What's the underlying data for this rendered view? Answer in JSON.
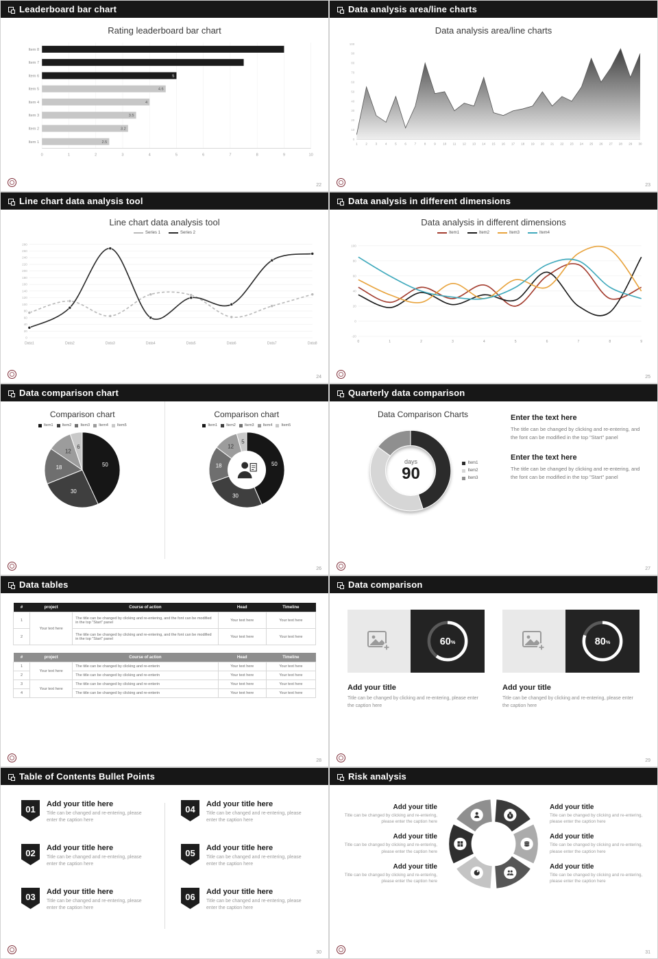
{
  "slides": {
    "leaderboard": {
      "header": "Leaderboard bar chart",
      "title": "Rating leaderboard bar chart",
      "page_no": "22",
      "chart_data": {
        "type": "bar",
        "orientation": "horizontal",
        "title": "Rating leaderboard bar chart",
        "categories": [
          "Item 1",
          "Item 2",
          "Item 3",
          "Item 4",
          "Item 5",
          "Item 6",
          "Item 7",
          "Item 8"
        ],
        "values": [
          2.5,
          3.2,
          3.5,
          4,
          4.6,
          5,
          7.5,
          9
        ],
        "value_labels": [
          "2.5",
          "3.2",
          "3.5",
          "4",
          "4.6",
          "5",
          "",
          ""
        ],
        "colors": [
          "#c7c7c7",
          "#c7c7c7",
          "#c7c7c7",
          "#c7c7c7",
          "#c7c7c7",
          "#1b1b1b",
          "#1b1b1b",
          "#1b1b1b"
        ],
        "xlim": [
          0,
          10
        ],
        "xticks": [
          0,
          1,
          2,
          3,
          4,
          5,
          6,
          7,
          8,
          9,
          10
        ]
      }
    },
    "area": {
      "header": "Data analysis area/line charts",
      "title": "Data analysis area/line charts",
      "page_no": "23",
      "chart_data": {
        "type": "area",
        "title": "Data analysis area/line charts",
        "x": [
          "1",
          "2",
          "3",
          "4",
          "5",
          "6",
          "7",
          "8",
          "9",
          "10",
          "11",
          "12",
          "13",
          "14",
          "15",
          "16",
          "17",
          "18",
          "19",
          "20",
          "21",
          "22",
          "23",
          "24",
          "25",
          "26",
          "27",
          "28",
          "29",
          "30"
        ],
        "values": [
          5,
          55,
          25,
          18,
          45,
          12,
          35,
          80,
          48,
          50,
          30,
          38,
          35,
          65,
          28,
          25,
          30,
          32,
          35,
          50,
          35,
          45,
          40,
          55,
          85,
          60,
          75,
          95,
          65,
          90
        ],
        "ylim": [
          0,
          100
        ],
        "ytick_step": 10
      }
    },
    "linechart": {
      "header": "Line chart data analysis tool",
      "title": "Line chart data analysis tool",
      "page_no": "24",
      "chart_data": {
        "type": "line",
        "title": "Line chart data analysis tool",
        "categories": [
          "Data1",
          "Data2",
          "Data3",
          "Data4",
          "Data5",
          "Data6",
          "Data7",
          "Data8"
        ],
        "ylim": [
          0,
          280
        ],
        "ytick_step": 20,
        "series": [
          {
            "name": "Series 1",
            "color": "#b9b9b9",
            "dash": "4 3",
            "markers": true,
            "values": [
              75,
              110,
              65,
              130,
              128,
              62,
              95,
              130
            ]
          },
          {
            "name": "Series 2",
            "color": "#2a2a2a",
            "dash": "",
            "markers": true,
            "values": [
              30,
              90,
              268,
              60,
              120,
              100,
              232,
              252
            ]
          }
        ]
      }
    },
    "dimensions": {
      "header": "Data analysis in different dimensions",
      "title": "Data analysis in different dimensions",
      "page_no": "25",
      "chart_data": {
        "type": "line",
        "title": "Data analysis in different dimensions",
        "categories": [
          "0",
          "1",
          "2",
          "3",
          "4",
          "5",
          "6",
          "7",
          "8",
          "9"
        ],
        "ylim": [
          -20,
          100
        ],
        "ytick_step": 20,
        "series": [
          {
            "name": "Item1",
            "color": "#a33c2e",
            "dash": "",
            "markers": false,
            "values": [
              45,
              25,
              45,
              30,
              48,
              20,
              60,
              75,
              30,
              45
            ]
          },
          {
            "name": "Item2",
            "color": "#1a1a1a",
            "dash": "",
            "markers": false,
            "values": [
              35,
              18,
              38,
              22,
              35,
              28,
              65,
              20,
              12,
              85
            ]
          },
          {
            "name": "Item3",
            "color": "#e8a33c",
            "dash": "",
            "markers": false,
            "values": [
              55,
              35,
              25,
              50,
              30,
              55,
              45,
              90,
              95,
              40
            ]
          },
          {
            "name": "Item4",
            "color": "#3fa9bc",
            "dash": "",
            "markers": false,
            "values": [
              85,
              60,
              40,
              32,
              30,
              45,
              75,
              80,
              45,
              30
            ]
          }
        ]
      }
    },
    "comparison": {
      "header": "Data comparison chart",
      "page_no": "26",
      "left": {
        "title": "Comparison chart",
        "legend": [
          "Item1",
          "Item2",
          "Item3",
          "Item4",
          "Item5"
        ],
        "chart_data": {
          "type": "pie",
          "values": [
            50,
            30,
            18,
            12,
            6
          ],
          "labels": [
            "50",
            "30",
            "18",
            "12",
            "6"
          ],
          "colors": [
            "#161616",
            "#3f3f3f",
            "#6f6f6f",
            "#9c9c9c",
            "#c9c9c9"
          ],
          "donut": 0
        }
      },
      "right": {
        "title": "Comparison chart",
        "legend": [
          "Item1",
          "Item2",
          "Item3",
          "Item4",
          "Item5"
        ],
        "chart_data": {
          "type": "pie",
          "values": [
            50,
            30,
            18,
            12,
            5
          ],
          "labels": [
            "50",
            "30",
            "18",
            "12",
            "5"
          ],
          "colors": [
            "#161616",
            "#3f3f3f",
            "#6f6f6f",
            "#9c9c9c",
            "#c9c9c9"
          ],
          "donut": 0.5
        }
      }
    },
    "quarterly": {
      "header": "Quarterly data comparison",
      "page_no": "27",
      "title": "Data Comparison Charts",
      "center_label": "days",
      "center_value": "90",
      "legend": [
        "Item1",
        "Item2",
        "Item3"
      ],
      "chart_data": {
        "type": "pie",
        "values": [
          45,
          40,
          15
        ],
        "labels": [
          "",
          "",
          ""
        ],
        "colors": [
          "#2b2b2b",
          "#d6d6d6",
          "#8f8f8f"
        ],
        "donut": 0.62
      },
      "blocks": [
        {
          "heading": "Enter the text here",
          "body": "The title can be changed by clicking and re-entering, and the font can be modified in the top \"Start\" panel"
        },
        {
          "heading": "Enter the text here",
          "body": "The title can be changed by clicking and re-entering, and the font can be modified in the top \"Start\" panel"
        }
      ]
    },
    "tables": {
      "header": "Data tables",
      "page_no": "28",
      "table1": {
        "columns": [
          "#",
          "project",
          "Course of action",
          "Head",
          "Timeline"
        ],
        "project": "Your text here",
        "rows": [
          {
            "num": "1",
            "course": "The title can be changed by clicking and re-entering, and the font can be modified in the top \"Start\" panel",
            "head": "Your text here",
            "timeline": "Your text here"
          },
          {
            "num": "2",
            "course": "The title can be changed by clicking and re-entering, and the font can be modified in the top \"Start\" panel",
            "head": "Your text here",
            "timeline": "Your text here"
          }
        ]
      },
      "table2": {
        "columns": [
          "#",
          "project",
          "Course of action",
          "Head",
          "Timeline"
        ],
        "project1": "Your text here",
        "project2": "Your text here",
        "rows": [
          {
            "num": "1",
            "course": "The title can be changed by clicking and re-enterin",
            "head": "Your text here",
            "timeline": "Your text here"
          },
          {
            "num": "2",
            "course": "The title can be changed by clicking and re-enterin",
            "head": "Your text here",
            "timeline": "Your text here"
          },
          {
            "num": "3",
            "course": "The title can be changed by clicking and re-enterin",
            "head": "Your text here",
            "timeline": "Your text here"
          },
          {
            "num": "4",
            "course": "The title can be changed by clicking and re-enterin",
            "head": "Your text here",
            "timeline": "Your text here"
          }
        ]
      }
    },
    "datacomp": {
      "header": "Data comparison",
      "page_no": "29",
      "cards": [
        {
          "ring": {
            "percent": 60
          },
          "title": "Add your title",
          "caption": "Title can be changed by clicking and re-entering, please enter the caption here",
          "icon": "image-placeholder-icon"
        },
        {
          "ring": {
            "percent": 80
          },
          "title": "Add your title",
          "caption": "Title can be changed by clicking and re-entering, please enter the caption here",
          "icon": "image-placeholder-icon"
        }
      ]
    },
    "toc": {
      "header": "Table of Contents Bullet Points",
      "page_no": "30",
      "items": [
        {
          "num": "01",
          "title": "Add your title here",
          "caption": "Title can be changed and re-entering, please enter the caption here"
        },
        {
          "num": "02",
          "title": "Add your title here",
          "caption": "Title can be changed and re-entering, please enter the caption here"
        },
        {
          "num": "03",
          "title": "Add your title here",
          "caption": "Title can be changed and re-entering, please enter the caption here"
        },
        {
          "num": "04",
          "title": "Add your title here",
          "caption": "Title can be changed and re-entering, please enter the caption here"
        },
        {
          "num": "05",
          "title": "Add your title here",
          "caption": "Title can be changed and re-entering, please enter the caption here"
        },
        {
          "num": "06",
          "title": "Add your title here",
          "caption": "Title can be changed and re-entering, please enter the caption here"
        }
      ]
    },
    "risk": {
      "header": "Risk analysis",
      "page_no": "31",
      "blocks_left": [
        {
          "title": "Add your title",
          "caption": "Title can be changed by clicking and re-entering, please enter the caption here"
        },
        {
          "title": "Add your title",
          "caption": "Title can be changed by clicking and re-entering, please enter the caption here"
        },
        {
          "title": "Add your title",
          "caption": "Title can be changed by clicking and re-entering, please enter the caption here"
        }
      ],
      "blocks_right": [
        {
          "title": "Add your title",
          "caption": "Title can be changed by clicking and re-entering, please enter the caption here"
        },
        {
          "title": "Add your title",
          "caption": "Title can be changed by clicking and re-entering, please enter the caption here"
        },
        {
          "title": "Add your title",
          "caption": "Title can be changed by clicking and re-entering, please enter the caption here"
        }
      ],
      "pinwheel": {
        "colors": [
          "#3a3a3a",
          "#ababab",
          "#565656",
          "#c4c4c4",
          "#2e2e2e",
          "#8f8f8f"
        ],
        "icons": [
          "moneybag",
          "coins",
          "users",
          "pie",
          "grid",
          "user"
        ]
      }
    }
  }
}
